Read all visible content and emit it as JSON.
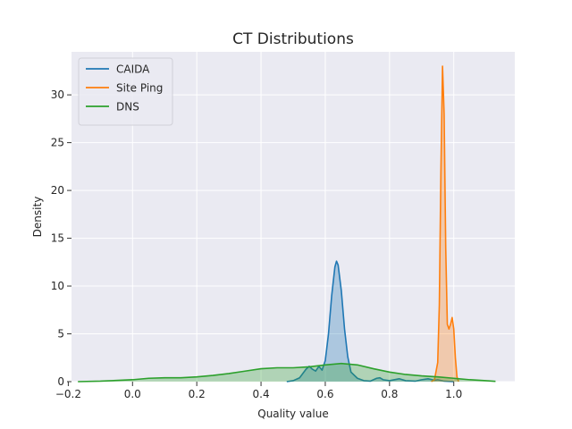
{
  "chart_data": {
    "type": "area",
    "title": "CT Distributions",
    "xlabel": "Quality value",
    "ylabel": "Density",
    "xlim": [
      -0.19,
      1.19
    ],
    "ylim": [
      0,
      34.5
    ],
    "xticks": [
      -0.2,
      0.0,
      0.2,
      0.4,
      0.6,
      0.8,
      1.0
    ],
    "xtick_labels": [
      "−0.2",
      "0.0",
      "0.2",
      "0.4",
      "0.6",
      "0.8",
      "1.0"
    ],
    "yticks": [
      0,
      5,
      10,
      15,
      20,
      25,
      30
    ],
    "ytick_labels": [
      "0",
      "5",
      "10",
      "15",
      "20",
      "25",
      "30"
    ],
    "grid": true,
    "legend_position": "top-left",
    "series": [
      {
        "name": "CAIDA",
        "color": "#1f77b4",
        "points": [
          [
            0.48,
            0
          ],
          [
            0.5,
            0.1
          ],
          [
            0.52,
            0.4
          ],
          [
            0.54,
            1.3
          ],
          [
            0.55,
            1.6
          ],
          [
            0.56,
            1.3
          ],
          [
            0.57,
            1.1
          ],
          [
            0.58,
            1.6
          ],
          [
            0.59,
            1.2
          ],
          [
            0.6,
            2.2
          ],
          [
            0.61,
            5.0
          ],
          [
            0.62,
            9.0
          ],
          [
            0.63,
            12.0
          ],
          [
            0.635,
            12.6
          ],
          [
            0.64,
            12.2
          ],
          [
            0.65,
            9.5
          ],
          [
            0.66,
            5.5
          ],
          [
            0.67,
            2.6
          ],
          [
            0.68,
            1.0
          ],
          [
            0.7,
            0.35
          ],
          [
            0.72,
            0.1
          ],
          [
            0.74,
            0.05
          ],
          [
            0.76,
            0.35
          ],
          [
            0.77,
            0.4
          ],
          [
            0.78,
            0.2
          ],
          [
            0.8,
            0.1
          ],
          [
            0.83,
            0.3
          ],
          [
            0.85,
            0.1
          ],
          [
            0.88,
            0.05
          ],
          [
            0.9,
            0.2
          ],
          [
            0.92,
            0.3
          ],
          [
            0.94,
            0.15
          ],
          [
            0.95,
            0.2
          ],
          [
            0.97,
            0.05
          ],
          [
            1.0,
            0
          ]
        ]
      },
      {
        "name": "Site Ping",
        "color": "#ff7f0e",
        "points": [
          [
            0.93,
            0
          ],
          [
            0.94,
            0.2
          ],
          [
            0.95,
            2.0
          ],
          [
            0.955,
            8.0
          ],
          [
            0.96,
            22.0
          ],
          [
            0.965,
            33.0
          ],
          [
            0.97,
            28.0
          ],
          [
            0.975,
            14.0
          ],
          [
            0.98,
            6.0
          ],
          [
            0.985,
            5.5
          ],
          [
            0.99,
            6.0
          ],
          [
            0.995,
            6.7
          ],
          [
            1.0,
            5.5
          ],
          [
            1.005,
            2.5
          ],
          [
            1.01,
            0.5
          ],
          [
            1.015,
            0
          ]
        ]
      },
      {
        "name": "DNS",
        "color": "#2ca02c",
        "points": [
          [
            -0.17,
            0
          ],
          [
            -0.1,
            0.05
          ],
          [
            0.0,
            0.2
          ],
          [
            0.05,
            0.35
          ],
          [
            0.1,
            0.4
          ],
          [
            0.15,
            0.4
          ],
          [
            0.2,
            0.5
          ],
          [
            0.25,
            0.65
          ],
          [
            0.3,
            0.85
          ],
          [
            0.35,
            1.1
          ],
          [
            0.4,
            1.35
          ],
          [
            0.45,
            1.45
          ],
          [
            0.5,
            1.45
          ],
          [
            0.55,
            1.55
          ],
          [
            0.6,
            1.75
          ],
          [
            0.65,
            1.9
          ],
          [
            0.7,
            1.75
          ],
          [
            0.75,
            1.35
          ],
          [
            0.8,
            1.0
          ],
          [
            0.85,
            0.75
          ],
          [
            0.9,
            0.6
          ],
          [
            0.95,
            0.5
          ],
          [
            1.0,
            0.35
          ],
          [
            1.05,
            0.2
          ],
          [
            1.1,
            0.1
          ],
          [
            1.13,
            0.03
          ]
        ]
      }
    ]
  }
}
